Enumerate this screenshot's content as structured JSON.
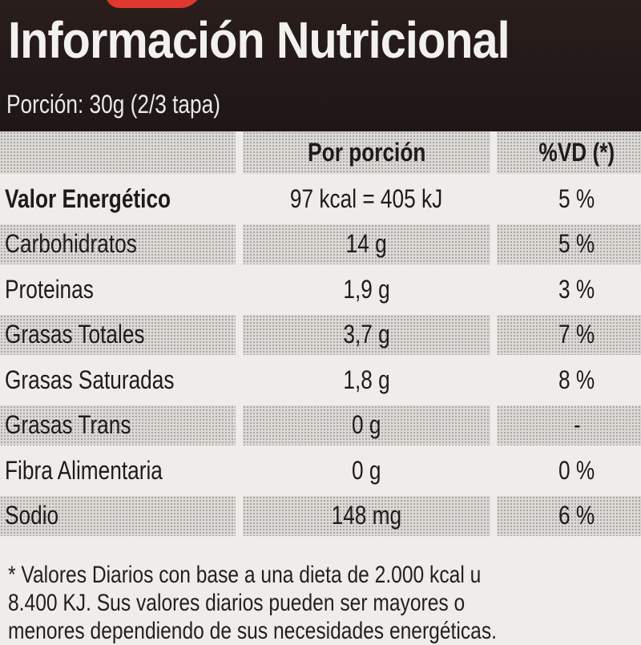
{
  "header": {
    "title": "Información Nutricional",
    "portion": "Porción: 30g (2/3 tapa)",
    "colors": {
      "background": "#241a19",
      "text": "#f3f1ee",
      "accent": "#e0382e"
    }
  },
  "table": {
    "columns": [
      "",
      "Por porción",
      "%VD (*)"
    ],
    "rows": [
      {
        "nutrient": "Valor Energético",
        "per_serving": "97 kcal = 405 kJ",
        "dv": "5 %"
      },
      {
        "nutrient": "Carbohidratos",
        "per_serving": "14 g",
        "dv": "5 %"
      },
      {
        "nutrient": "Proteinas",
        "per_serving": "1,9 g",
        "dv": "3 %"
      },
      {
        "nutrient": "Grasas Totales",
        "per_serving": "3,7 g",
        "dv": "7 %"
      },
      {
        "nutrient": "Grasas Saturadas",
        "per_serving": "1,8 g",
        "dv": "8 %"
      },
      {
        "nutrient": "Grasas Trans",
        "per_serving": "0 g",
        "dv": "-"
      },
      {
        "nutrient": "Fibra Alimentaria",
        "per_serving": "0 g",
        "dv": "0 %"
      },
      {
        "nutrient": "Sodio",
        "per_serving": "148 mg",
        "dv": "6 %"
      }
    ]
  },
  "footnote": {
    "lines": [
      "* Valores Diarios con base a una dieta de 2.000 kcal u",
      "8.400 KJ. Sus valores diarios pueden ser mayores o",
      "menores dependiendo de sus necesidades energéticas."
    ]
  }
}
